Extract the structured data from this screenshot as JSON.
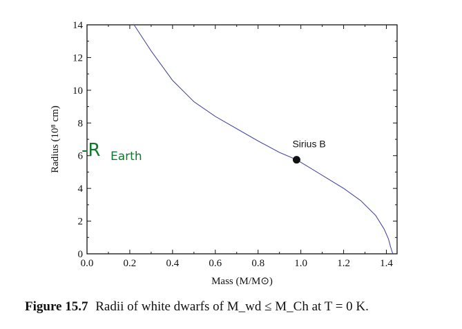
{
  "chart_data": {
    "type": "line",
    "xlabel": "Mass (M/M⊙)",
    "ylabel": "Radius (10⁸ cm)",
    "xlim": [
      0.0,
      1.45
    ],
    "ylim": [
      0,
      14
    ],
    "x_ticks": [
      "0.0",
      "0.2",
      "0.4",
      "0.6",
      "0.8",
      "1.0",
      "1.2",
      "1.4"
    ],
    "y_ticks": [
      "0",
      "2",
      "4",
      "6",
      "8",
      "10",
      "12",
      "14"
    ],
    "grid": false,
    "series": [
      {
        "x": [
          0.22,
          0.3,
          0.4,
          0.5,
          0.6,
          0.7,
          0.8,
          0.9,
          0.98,
          1.05,
          1.1,
          1.2,
          1.28,
          1.35,
          1.39,
          1.41,
          1.42,
          1.43
        ],
        "y": [
          14.0,
          12.4,
          10.6,
          9.3,
          8.4,
          7.65,
          6.9,
          6.2,
          5.75,
          5.2,
          4.8,
          4.0,
          3.25,
          2.35,
          1.5,
          0.9,
          0.4,
          0.0
        ]
      }
    ],
    "points": [
      {
        "label": "Sirius B",
        "x": 0.98,
        "y": 5.75
      }
    ],
    "annotations": [
      {
        "text": "-R",
        "subscript": "Earth",
        "y": 6.4
      }
    ]
  },
  "caption": {
    "figure_number": "Figure 15.7",
    "text": "Radii of white dwarfs of M_wd ≤ M_Ch at T = 0 K."
  }
}
